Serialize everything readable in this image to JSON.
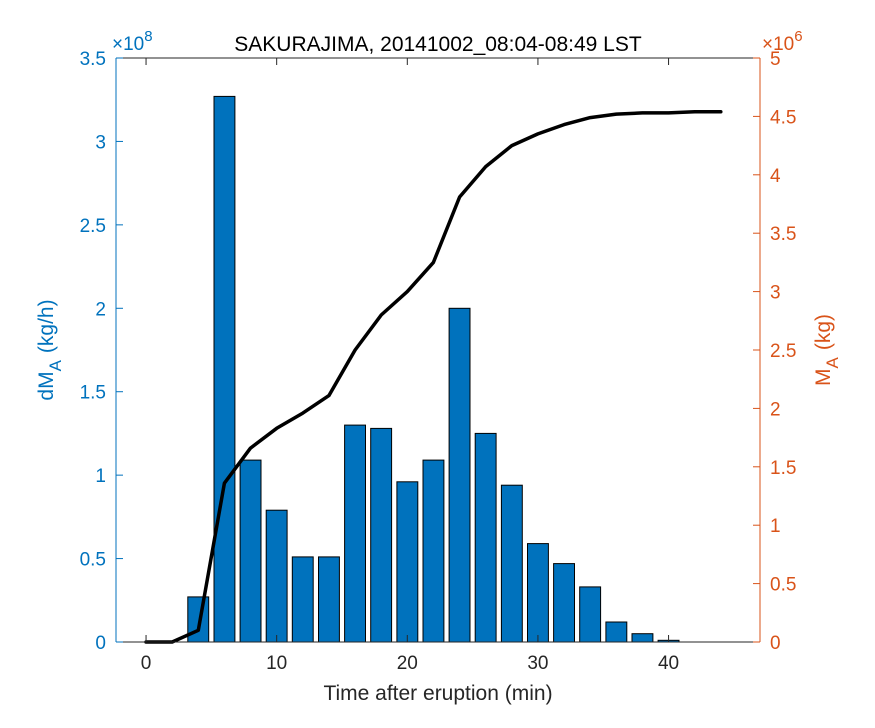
{
  "chart_data": {
    "type": "bar",
    "title": "SAKURAJIMA, 20141002_08:04-08:49 LST",
    "xlabel": "Time after eruption (min)",
    "ylabel_left": {
      "main": "dM",
      "sub": "A",
      "rest": "(kg/h)"
    },
    "ylabel_right": {
      "main": "M",
      "sub": "A",
      "rest": "(kg)"
    },
    "left_exponent": {
      "base": "×10",
      "power": "8"
    },
    "right_exponent": {
      "base": "×10",
      "power": "6"
    },
    "xlim": [
      -2.3,
      47
    ],
    "x_ticks": [
      0,
      10,
      20,
      30,
      40
    ],
    "left_ylim": [
      0,
      3.5
    ],
    "left_ticks": [
      0,
      0.5,
      1,
      1.5,
      2,
      2.5,
      3,
      3.5
    ],
    "right_ylim": [
      0,
      5
    ],
    "right_ticks": [
      0,
      0.5,
      1,
      1.5,
      2,
      2.5,
      3,
      3.5,
      4,
      4.5,
      5
    ],
    "bar_width": 1.6,
    "series": [
      {
        "axis": "left",
        "type": "bar",
        "color": "#0072bd",
        "x": [
          4,
          6,
          8,
          10,
          12,
          14,
          16,
          18,
          20,
          22,
          24,
          26,
          28,
          30,
          32,
          34,
          36,
          38,
          40
        ],
        "values": [
          0.27,
          3.27,
          1.09,
          0.79,
          0.51,
          0.51,
          1.3,
          1.28,
          0.96,
          1.09,
          2.0,
          1.25,
          0.94,
          0.59,
          0.47,
          0.33,
          0.12,
          0.05,
          0.01
        ]
      },
      {
        "axis": "right",
        "type": "line",
        "color": "#000000",
        "x": [
          0,
          2,
          4,
          6,
          8,
          10,
          12,
          14,
          16,
          18,
          20,
          22,
          24,
          26,
          28,
          30,
          32,
          34,
          36,
          38,
          40,
          42,
          44
        ],
        "values": [
          0,
          0,
          0.1,
          1.36,
          1.66,
          1.83,
          1.96,
          2.11,
          2.5,
          2.8,
          3.0,
          3.25,
          3.81,
          4.07,
          4.25,
          4.35,
          4.43,
          4.49,
          4.52,
          4.53,
          4.53,
          4.54,
          4.54
        ]
      }
    ],
    "colors": {
      "left_axis": "#0072bd",
      "right_axis": "#d95319"
    }
  }
}
